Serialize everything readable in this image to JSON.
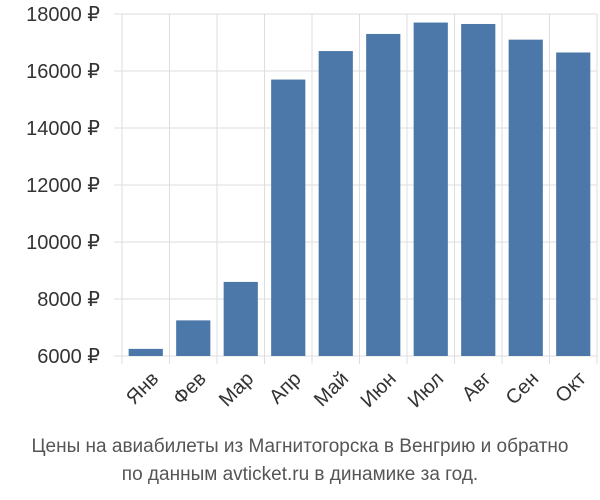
{
  "chart_data": {
    "type": "bar",
    "categories": [
      "Янв",
      "Фев",
      "Мар",
      "Апр",
      "Май",
      "Июн",
      "Июл",
      "Авг",
      "Сен",
      "Окт"
    ],
    "values": [
      6250,
      7250,
      8600,
      15700,
      16700,
      17300,
      17700,
      17650,
      17100,
      16650
    ],
    "ylim": [
      6000,
      18000
    ],
    "yticks": [
      6000,
      8000,
      10000,
      12000,
      14000,
      16000,
      18000
    ],
    "ytick_labels": [
      "6000 ₽",
      "8000 ₽",
      "10000 ₽",
      "12000 ₽",
      "14000 ₽",
      "16000 ₽",
      "18000 ₽"
    ],
    "grid": true,
    "bar_color": "#4b78a8",
    "grid_color": "#dddddd"
  },
  "caption": {
    "line1": "Цены на авиабилеты из Магнитогорска в Венгрию и обратно",
    "line2": "по данным avticket.ru в динамике за год."
  }
}
